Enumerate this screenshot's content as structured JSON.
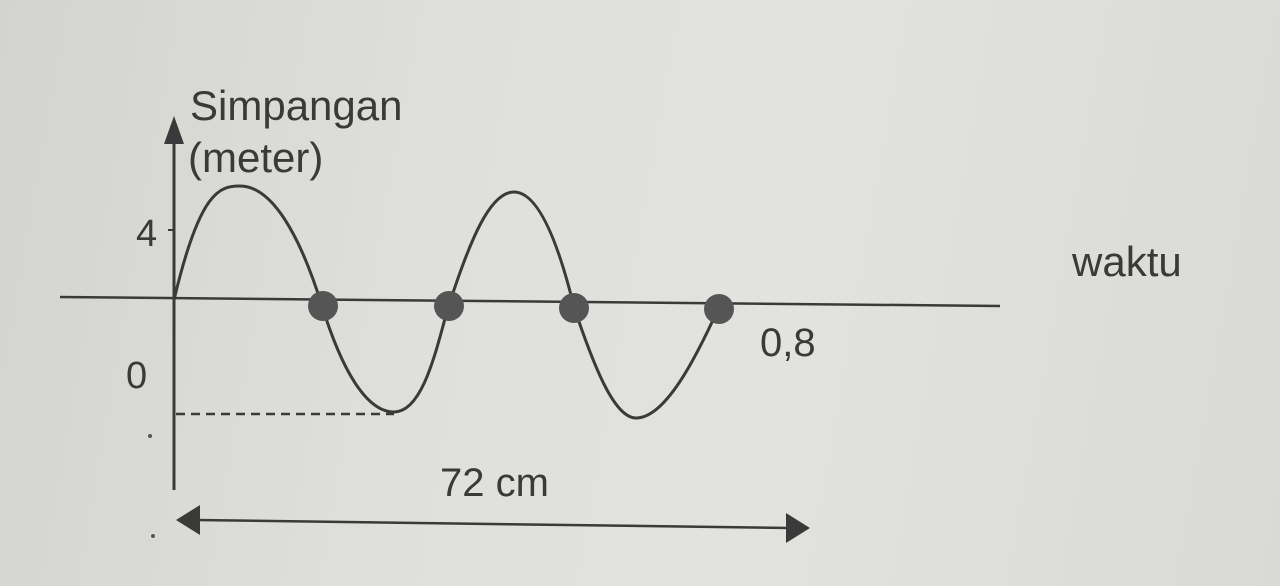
{
  "diagram": {
    "y_axis_label_line1": "Simpangan",
    "y_axis_label_line2": "(meter)",
    "x_axis_label": "waktu",
    "tick_amplitude": "4",
    "tick_origin": "0",
    "time_mark": "0,8",
    "length_label": "72 cm",
    "colors": {
      "ink": "#3a3a3a",
      "dots": "#555555",
      "background": "#dcdcd8"
    }
  }
}
